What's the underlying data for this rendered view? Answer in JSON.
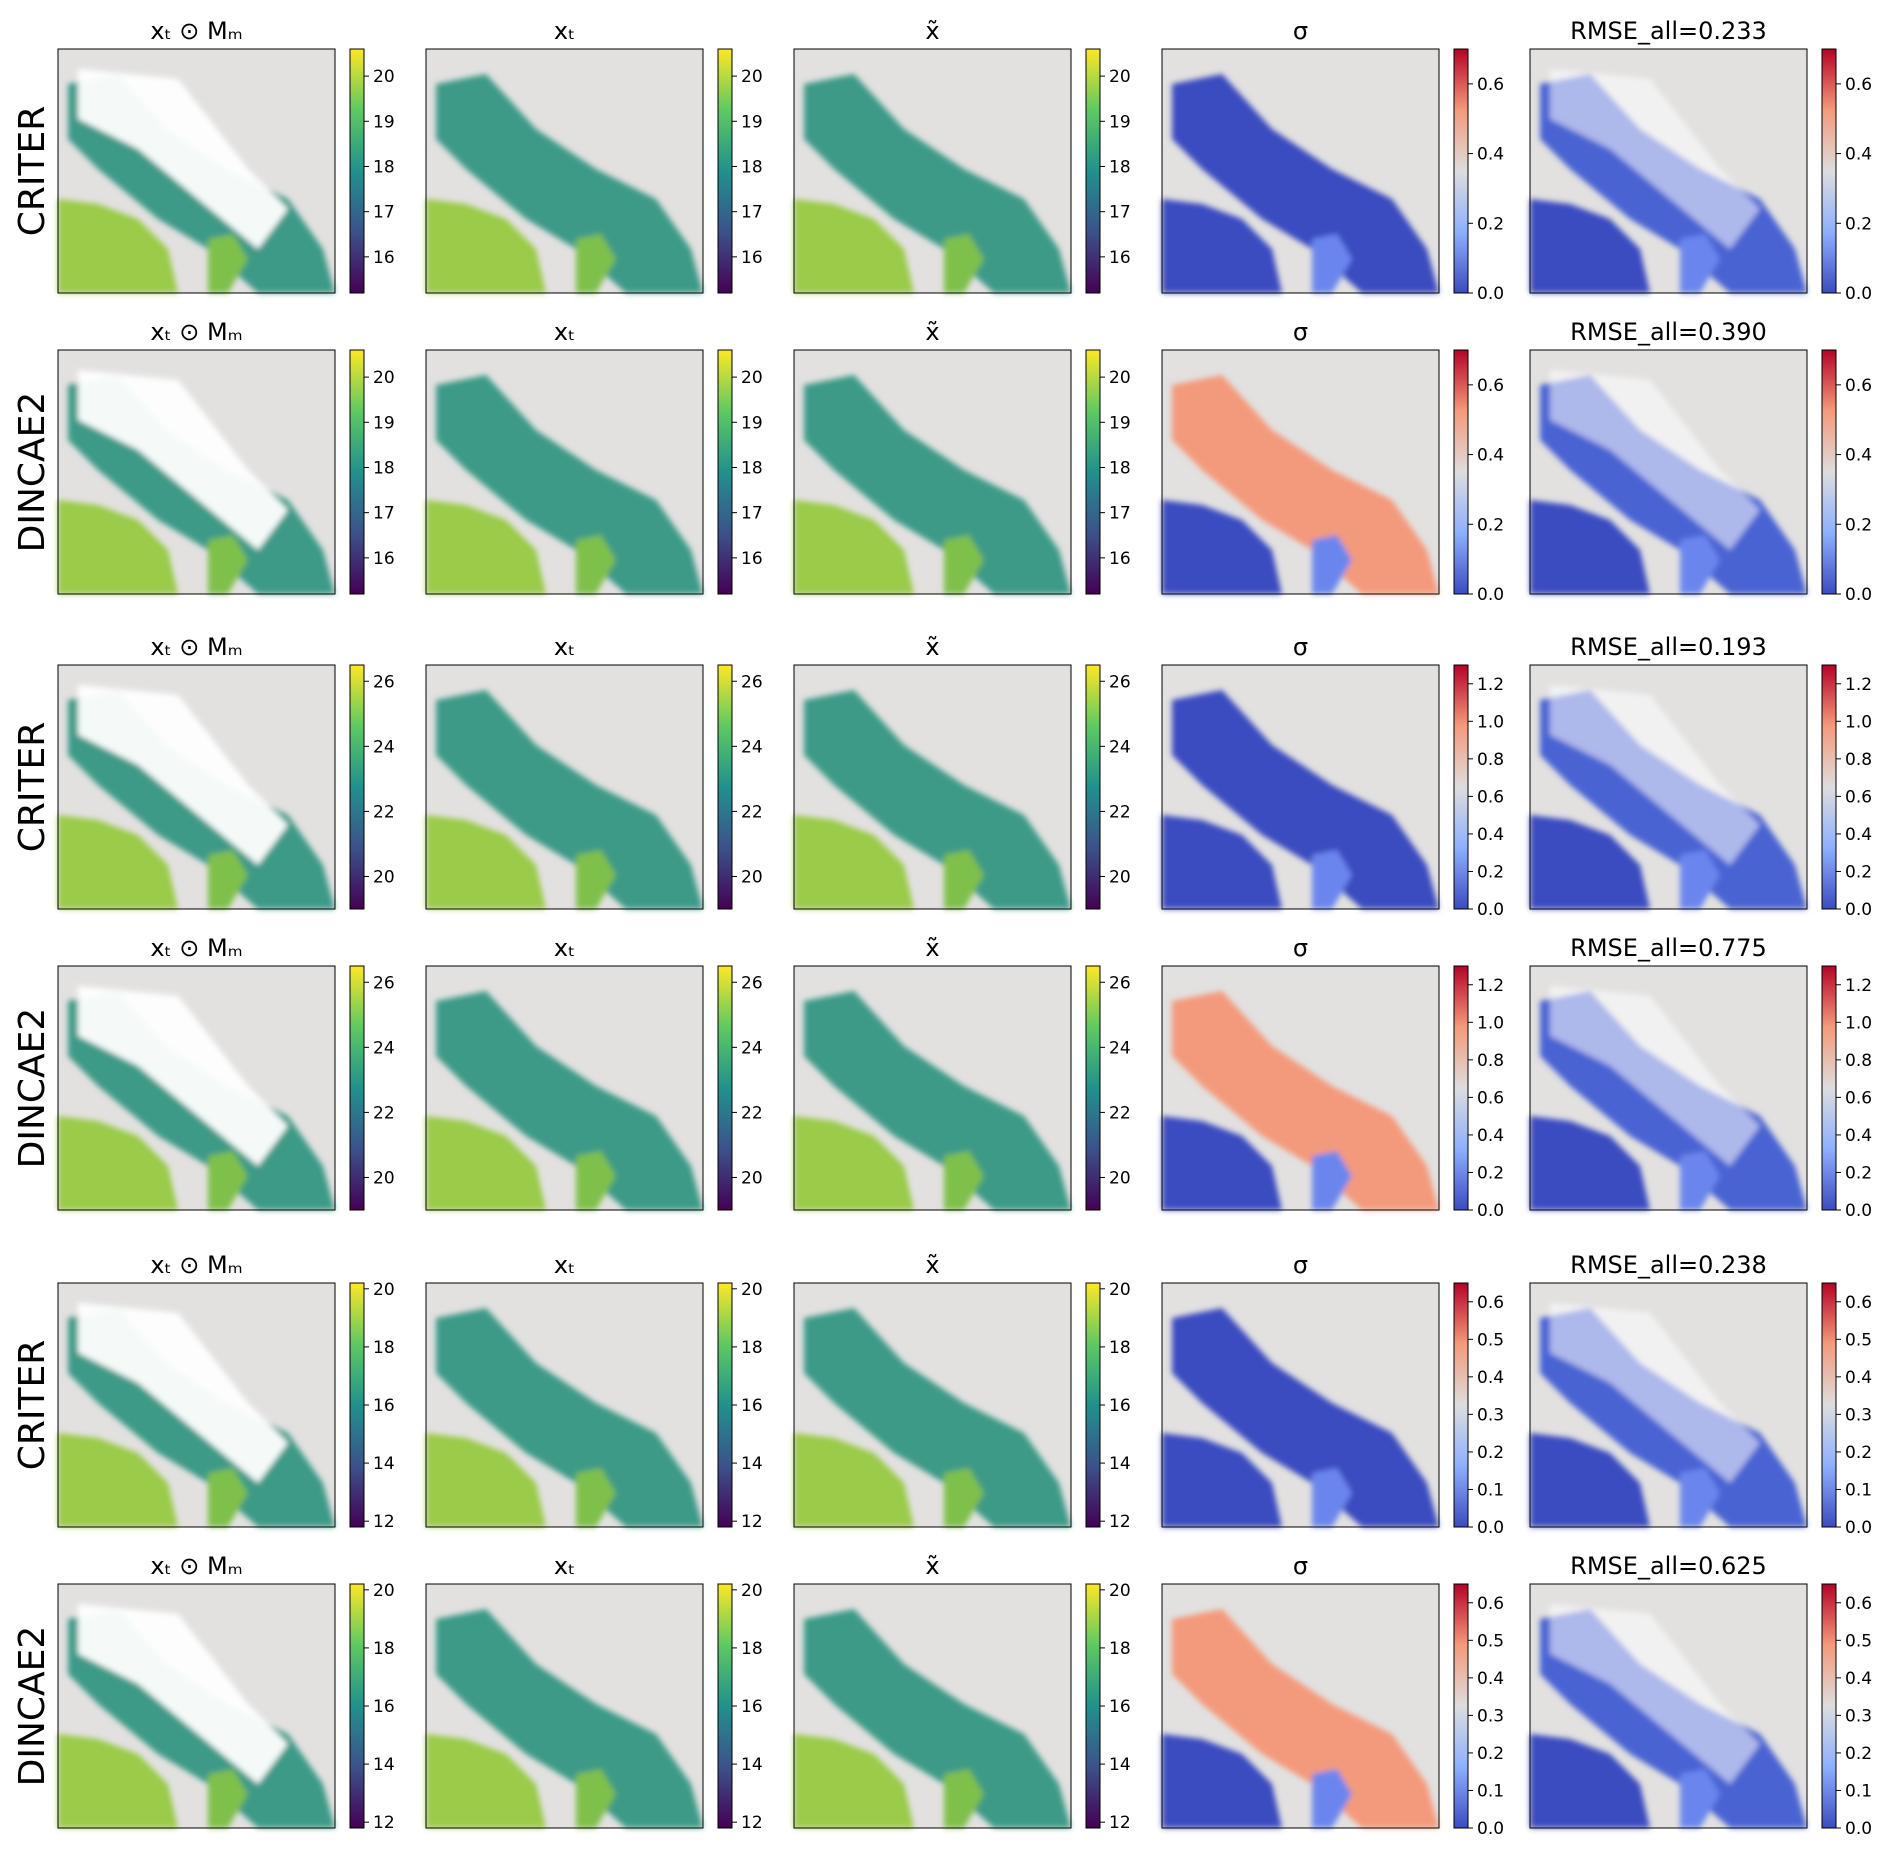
{
  "figure": {
    "groups": [
      {
        "rows": [
          "CRITER",
          "DINCAE2"
        ],
        "temperature_ticks": [
          "16",
          "17",
          "18",
          "19",
          "20"
        ],
        "sigma_ticks": [
          "0.0",
          "0.2",
          "0.4",
          "0.6"
        ]
      },
      {
        "rows": [
          "CRITER",
          "DINCAE2"
        ],
        "temperature_ticks": [
          "20",
          "22",
          "24",
          "26"
        ],
        "sigma_ticks": [
          "0.0",
          "0.2",
          "0.4",
          "0.6",
          "0.8",
          "1.0",
          "1.2"
        ]
      },
      {
        "rows": [
          "CRITER",
          "DINCAE2"
        ],
        "temperature_ticks": [
          "12",
          "14",
          "16",
          "18",
          "20"
        ],
        "sigma_ticks": [
          "0.0",
          "0.1",
          "0.2",
          "0.3",
          "0.4",
          "0.5",
          "0.6"
        ]
      }
    ],
    "column_titles": {
      "masked": "xₜ ⊙ Mₘ",
      "truth": "xₜ",
      "reconstruction": "x̃",
      "sigma": "σ"
    },
    "rmse_titles": [
      "RMSE_all=0.233",
      "RMSE_all=0.390",
      "RMSE_all=0.193",
      "RMSE_all=0.775",
      "RMSE_all=0.238",
      "RMSE_all=0.625"
    ],
    "colors": {
      "land": "#e2e1e0",
      "missing": "#ffffff",
      "viridis": [
        "#440154",
        "#3b528b",
        "#21918c",
        "#5ec962",
        "#fde725"
      ],
      "coolwarm": [
        "#3b4cc0",
        "#8db0fe",
        "#dddddd",
        "#f49a7b",
        "#b40426"
      ]
    }
  },
  "chart_data": [
    {
      "type": "heatmap",
      "group": 1,
      "row": "CRITER",
      "rmse_all": 0.233,
      "temperature_colorbar": [
        15.2,
        20.6
      ],
      "sigma_colorbar": [
        0.0,
        0.7
      ]
    },
    {
      "type": "heatmap",
      "group": 1,
      "row": "DINCAE2",
      "rmse_all": 0.39,
      "temperature_colorbar": [
        15.2,
        20.6
      ],
      "sigma_colorbar": [
        0.0,
        0.7
      ]
    },
    {
      "type": "heatmap",
      "group": 2,
      "row": "CRITER",
      "rmse_all": 0.193,
      "temperature_colorbar": [
        19.0,
        26.5
      ],
      "sigma_colorbar": [
        0.0,
        1.3
      ]
    },
    {
      "type": "heatmap",
      "group": 2,
      "row": "DINCAE2",
      "rmse_all": 0.775,
      "temperature_colorbar": [
        19.0,
        26.5
      ],
      "sigma_colorbar": [
        0.0,
        1.3
      ]
    },
    {
      "type": "heatmap",
      "group": 3,
      "row": "CRITER",
      "rmse_all": 0.238,
      "temperature_colorbar": [
        11.8,
        20.2
      ],
      "sigma_colorbar": [
        0.0,
        0.65
      ]
    },
    {
      "type": "heatmap",
      "group": 3,
      "row": "DINCAE2",
      "rmse_all": 0.625,
      "temperature_colorbar": [
        11.8,
        20.2
      ],
      "sigma_colorbar": [
        0.0,
        0.65
      ]
    }
  ]
}
